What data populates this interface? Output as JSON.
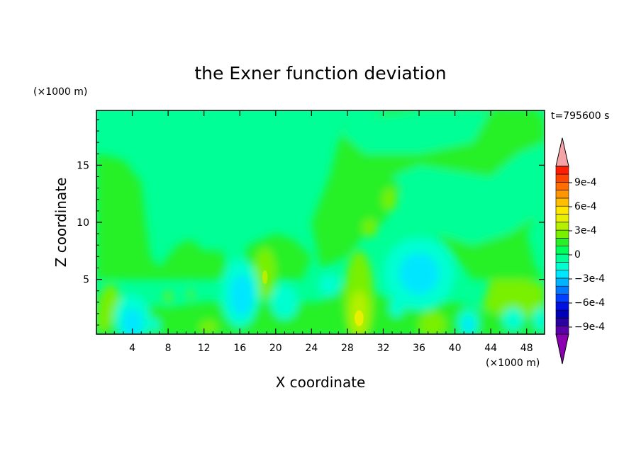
{
  "chart_data": {
    "type": "heatmap",
    "title": "the Exner function deviation",
    "xlabel": "X coordinate",
    "ylabel": "Z coordinate",
    "x_unit": "(×1000 m)",
    "y_unit": "(×1000 m)",
    "time_label": "t=795600 s",
    "xlim": [
      0,
      50
    ],
    "ylim": [
      0.2,
      19.8
    ],
    "x_ticks": [
      "4",
      "8",
      "12",
      "16",
      "20",
      "24",
      "28",
      "32",
      "36",
      "40",
      "44",
      "48"
    ],
    "y_ticks": [
      "5",
      "10",
      "15"
    ],
    "colorbar": {
      "labels": [
        "9e-4",
        "6e-4",
        "3e-4",
        "0",
        "−3e-4",
        "−6e-4",
        "−9e-4"
      ],
      "levels": [
        -0.0012,
        -0.0011,
        -0.001,
        -0.0009,
        -0.0008,
        -0.0007,
        -0.0006,
        -0.0005,
        -0.0004,
        -0.0003,
        -0.0002,
        -0.0001,
        0.0,
        0.0001,
        0.0002,
        0.0003,
        0.0004,
        0.0005,
        0.0006,
        0.0007,
        0.0008,
        0.0009,
        0.001
      ],
      "colors_low_to_high": [
        "#8a00b0",
        "#5a00a8",
        "#2a00a0",
        "#0000b8",
        "#0010e0",
        "#0040ff",
        "#0078ff",
        "#00b4ff",
        "#00e6ff",
        "#00ffd0",
        "#00ff96",
        "#00ff5a",
        "#28f028",
        "#78f000",
        "#b4f000",
        "#e6f000",
        "#ffe600",
        "#ffbe00",
        "#ff9600",
        "#ff6e00",
        "#ff4600",
        "#ff1e00",
        "#f4a4a4"
      ]
    }
  }
}
